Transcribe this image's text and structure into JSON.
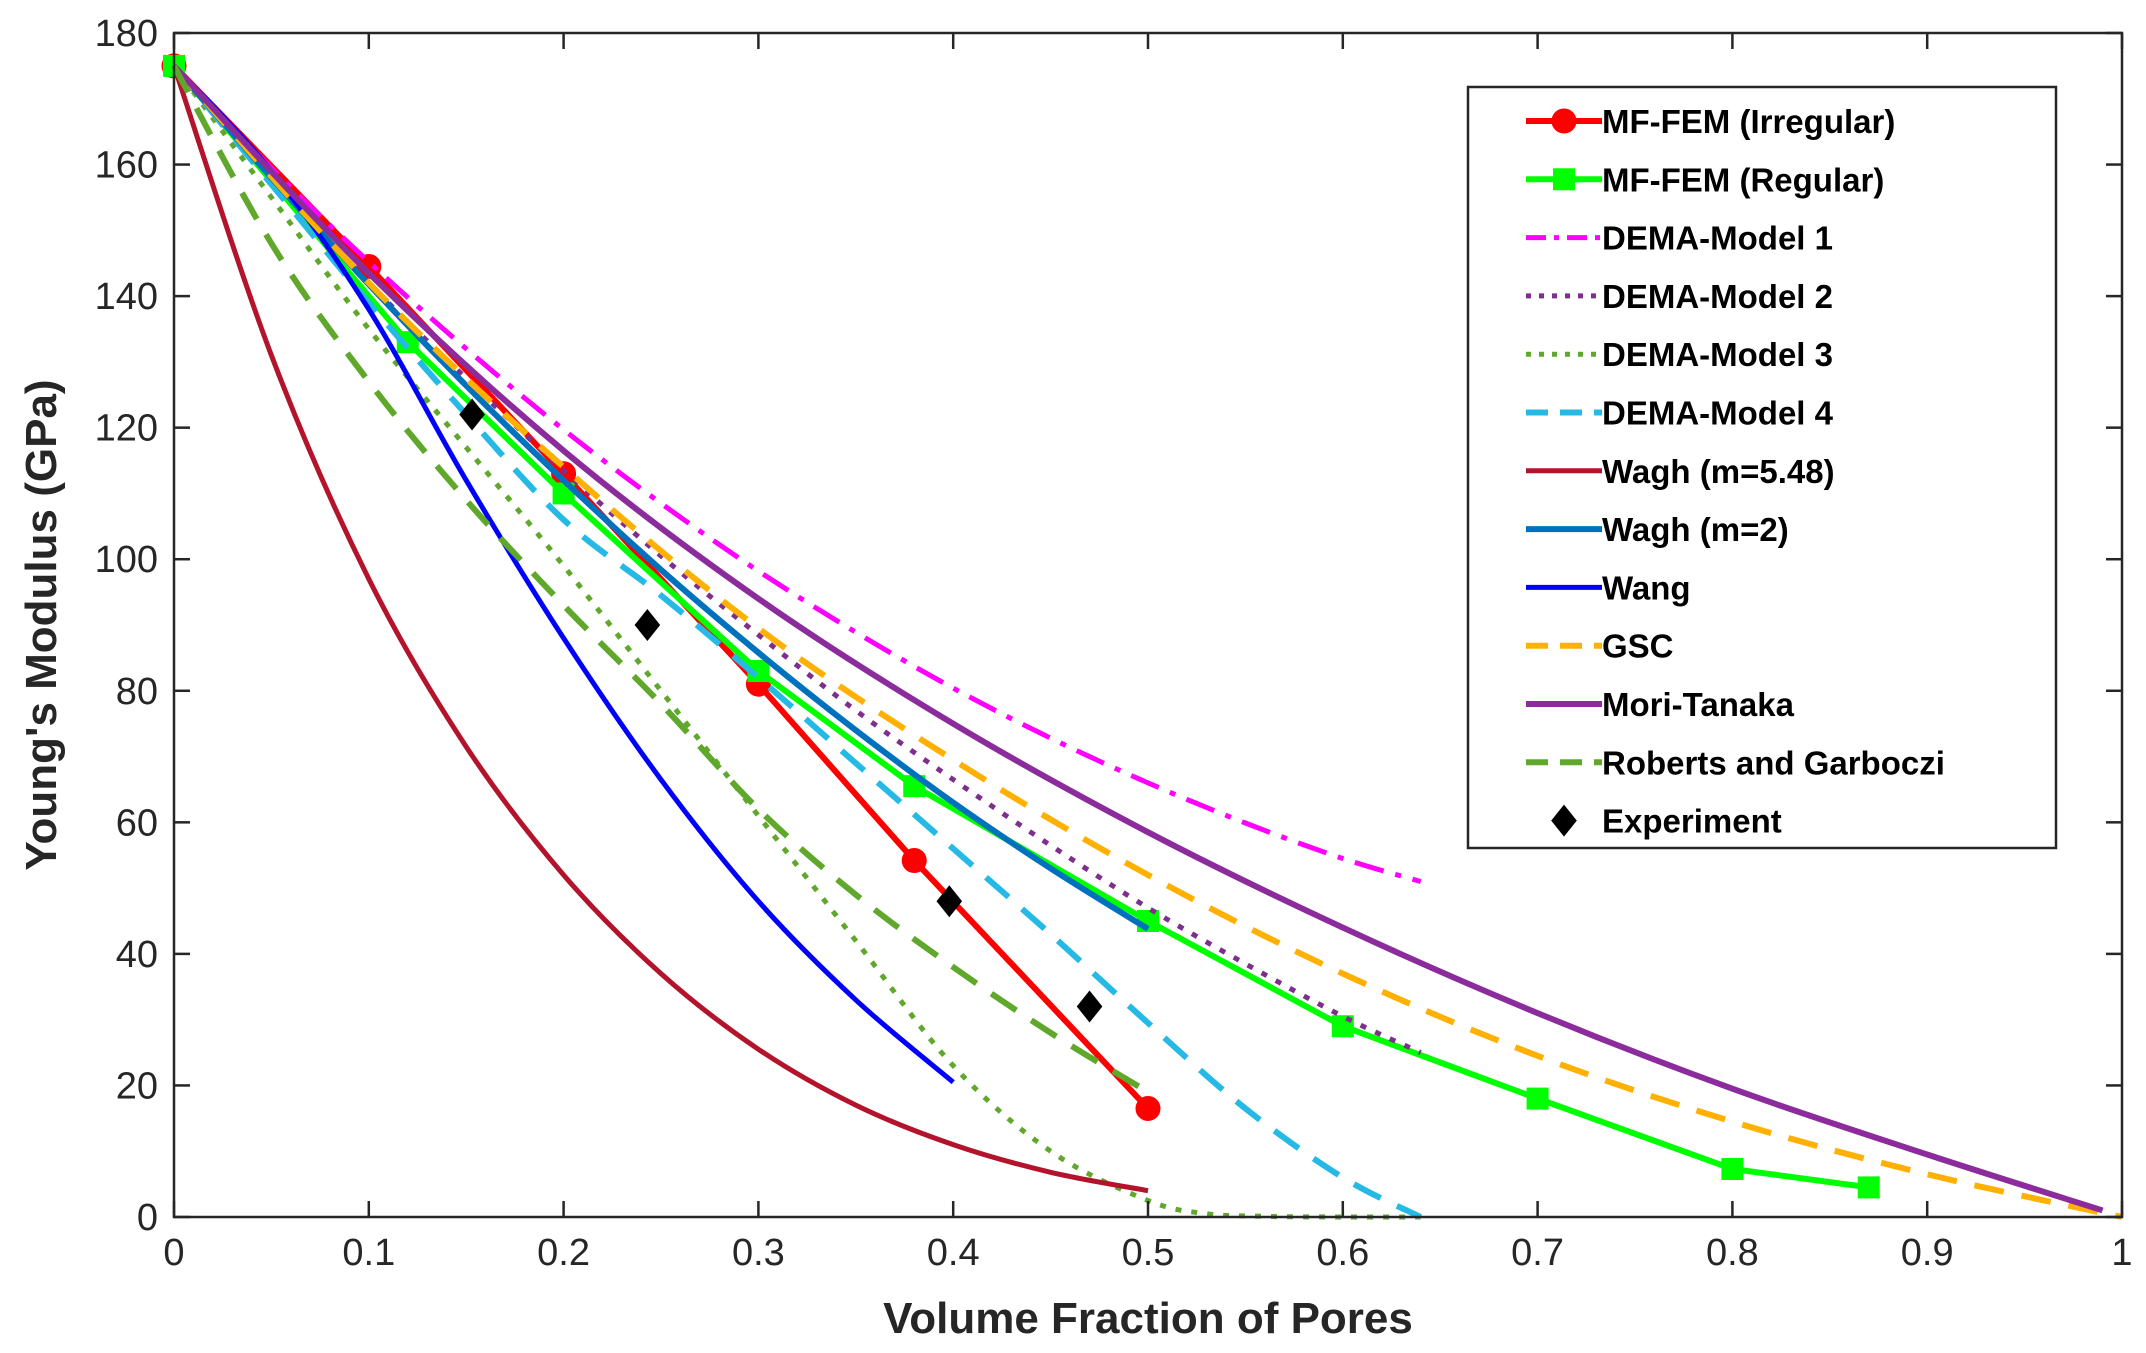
{
  "chart_data": {
    "type": "line",
    "title": "",
    "xlabel": "Volume Fraction of Pores",
    "ylabel": "Young's Modulus (GPa)",
    "xlim": [
      0,
      1
    ],
    "ylim": [
      0,
      180
    ],
    "xticks": [
      0,
      0.1,
      0.2,
      0.3,
      0.4,
      0.5,
      0.6,
      0.7,
      0.8,
      0.9,
      1
    ],
    "xtick_labels": [
      "0",
      "0.1",
      "0.2",
      "0.3",
      "0.4",
      "0.5",
      "0.6",
      "0.7",
      "0.8",
      "0.9",
      "1"
    ],
    "yticks": [
      0,
      20,
      40,
      60,
      80,
      100,
      120,
      140,
      160,
      180
    ],
    "ytick_labels": [
      "0",
      "20",
      "40",
      "60",
      "80",
      "100",
      "120",
      "140",
      "160",
      "180"
    ],
    "grid": false,
    "legend_position": "top-right",
    "series": [
      {
        "name": "MF-FEM (Irregular)",
        "color": "#ff0000",
        "dash": "solid",
        "width": 6,
        "marker": "circle",
        "x": [
          0,
          0.1,
          0.2,
          0.3,
          0.38,
          0.5
        ],
        "y": [
          175,
          144.5,
          113,
          81,
          54.2,
          16.5
        ]
      },
      {
        "name": "MF-FEM (Regular)",
        "color": "#00ff00",
        "dash": "solid",
        "width": 6,
        "marker": "square",
        "x": [
          0,
          0.12,
          0.2,
          0.3,
          0.38,
          0.5,
          0.6,
          0.7,
          0.8,
          0.87
        ],
        "y": [
          175,
          133,
          110,
          83,
          65.5,
          45,
          29,
          18,
          7.3,
          4.5
        ]
      },
      {
        "name": "DEMA-Model 1",
        "color": "#ff00ff",
        "dash": "dashdot",
        "width": 5,
        "marker": "none",
        "x": [
          0,
          0.05,
          0.1,
          0.15,
          0.2,
          0.25,
          0.3,
          0.35,
          0.4,
          0.45,
          0.5,
          0.55,
          0.6,
          0.64
        ],
        "y": [
          175,
          159.5,
          145.2,
          132,
          119.7,
          108.5,
          98.2,
          88.9,
          80.4,
          72.8,
          66,
          59.9,
          54.5,
          51
        ]
      },
      {
        "name": "DEMA-Model 2",
        "color": "#7e2f8e",
        "dash": "dot",
        "width": 5,
        "marker": "none",
        "x": [
          0,
          0.05,
          0.1,
          0.15,
          0.2,
          0.25,
          0.3,
          0.35,
          0.4,
          0.45,
          0.5,
          0.55,
          0.6,
          0.64
        ],
        "y": [
          175,
          158,
          142,
          127.5,
          113.5,
          100.5,
          88.5,
          77,
          66.5,
          56.5,
          47,
          38.5,
          30.5,
          25
        ]
      },
      {
        "name": "DEMA-Model 3",
        "color": "#5fa82b",
        "dash": "dot",
        "width": 5,
        "marker": "none",
        "x": [
          0,
          0.05,
          0.1,
          0.15,
          0.2,
          0.25,
          0.3,
          0.35,
          0.4,
          0.45,
          0.5,
          0.53,
          0.56,
          0.6,
          0.64
        ],
        "y": [
          175,
          155,
          135,
          117,
          99,
          80,
          61,
          42,
          23,
          10,
          2.5,
          0.5,
          0.1,
          0,
          0
        ]
      },
      {
        "name": "DEMA-Model 4",
        "color": "#25b9e6",
        "dash": "dash",
        "width": 6,
        "marker": "none",
        "x": [
          0,
          0.05,
          0.1,
          0.15,
          0.2,
          0.25,
          0.3,
          0.35,
          0.4,
          0.45,
          0.5,
          0.55,
          0.6,
          0.64
        ],
        "y": [
          175,
          157,
          139,
          122,
          106,
          94.5,
          82,
          69,
          56,
          43,
          29.5,
          16.5,
          6,
          0
        ]
      },
      {
        "name": "Wagh (m=5.48)",
        "color": "#b3142c",
        "dash": "solid",
        "width": 5,
        "marker": "none",
        "x": [
          0,
          0.05,
          0.1,
          0.15,
          0.2,
          0.25,
          0.3,
          0.35,
          0.4,
          0.45,
          0.5
        ],
        "y": [
          175,
          131,
          97,
          71.5,
          52,
          37,
          25.5,
          17,
          11,
          6.8,
          4
        ]
      },
      {
        "name": "Wagh (m=2)",
        "color": "#0072bd",
        "dash": "solid",
        "width": 6,
        "marker": "none",
        "x": [
          0,
          0.05,
          0.1,
          0.15,
          0.2,
          0.25,
          0.3,
          0.35,
          0.4,
          0.45,
          0.5
        ],
        "y": [
          175,
          158,
          141.8,
          126.4,
          112,
          98.4,
          85.8,
          74,
          63,
          53,
          43.8
        ]
      },
      {
        "name": "Wang",
        "color": "#0000ff",
        "dash": "solid",
        "width": 5,
        "marker": "none",
        "x": [
          0,
          0.05,
          0.1,
          0.15,
          0.2,
          0.25,
          0.3,
          0.35,
          0.4
        ],
        "y": [
          175,
          159,
          138,
          112,
          88,
          66.5,
          48,
          33,
          20.5
        ]
      },
      {
        "name": "GSC",
        "color": "#ffb000",
        "dash": "dash",
        "width": 6,
        "marker": "none",
        "x": [
          0,
          0.1,
          0.2,
          0.3,
          0.4,
          0.5,
          0.6,
          0.7,
          0.8,
          0.9,
          1
        ],
        "y": [
          175,
          142,
          114,
          89.5,
          69.5,
          52,
          37,
          24.5,
          14.5,
          6.5,
          0
        ]
      },
      {
        "name": "Mori-Tanaka",
        "color": "#8c2c9c",
        "dash": "solid",
        "width": 6,
        "marker": "none",
        "x": [
          0,
          0.1,
          0.2,
          0.3,
          0.4,
          0.5,
          0.6,
          0.7,
          0.8,
          0.9,
          0.99
        ],
        "y": [
          175,
          143.5,
          116.5,
          94,
          75,
          58.5,
          44,
          31,
          19.5,
          9.5,
          1
        ]
      },
      {
        "name": "Roberts and Garboczi",
        "color": "#5fa82b",
        "dash": "dash",
        "width": 6,
        "marker": "none",
        "x": [
          0,
          0.05,
          0.1,
          0.15,
          0.2,
          0.25,
          0.3,
          0.35,
          0.4,
          0.45,
          0.5
        ],
        "y": [
          175,
          148,
          127,
          109,
          93,
          78,
          62,
          49,
          38,
          28,
          19
        ]
      },
      {
        "name": "Experiment",
        "color": "#000000",
        "dash": "none",
        "width": 0,
        "marker": "diamond",
        "x": [
          0.153,
          0.243,
          0.398,
          0.47
        ],
        "y": [
          122,
          90,
          48,
          32
        ]
      }
    ]
  }
}
